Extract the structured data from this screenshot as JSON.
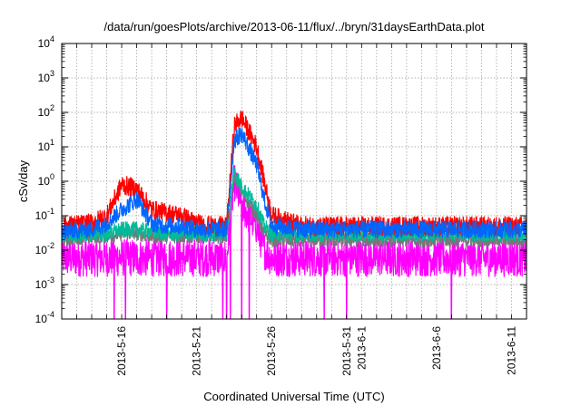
{
  "chart_data": {
    "type": "line",
    "title": "/data/run/goesPlots/archive/2013-06-11/flux/../bryn/31daysEarthData.plot",
    "xlabel": "Coordinated Universal Time (UTC)",
    "ylabel": "cSv/day",
    "y_scale": "log",
    "ylim": [
      0.0001,
      10000
    ],
    "xlim": [
      "2013-05-12",
      "2013-06-12"
    ],
    "grid": true,
    "x_ticks": [
      "2013-5-16",
      "2013-5-21",
      "2013-5-26",
      "2013-5-31",
      "2013-6-1",
      "2013-6-6",
      "2013-6-11"
    ],
    "y_ticks": [
      {
        "base": "10",
        "exp": "-4"
      },
      {
        "base": "10",
        "exp": "-3"
      },
      {
        "base": "10",
        "exp": "-2"
      },
      {
        "base": "10",
        "exp": "-1"
      },
      {
        "base": "10",
        "exp": "0"
      },
      {
        "base": "10",
        "exp": "1"
      },
      {
        "base": "10",
        "exp": "2"
      },
      {
        "base": "10",
        "exp": "3"
      },
      {
        "base": "10",
        "exp": "4"
      }
    ],
    "x": [
      "2013-05-12",
      "2013-05-14",
      "2013-05-15",
      "2013-05-16",
      "2013-05-17",
      "2013-05-18",
      "2013-05-19",
      "2013-05-20",
      "2013-05-21",
      "2013-05-22",
      "2013-05-23",
      "2013-05-23T12:00",
      "2013-05-24",
      "2013-05-25",
      "2013-05-25T12:00",
      "2013-05-26",
      "2013-05-28",
      "2013-06-01",
      "2013-06-06",
      "2013-06-12"
    ],
    "series": [
      {
        "color": "#ff0000",
        "values": [
          0.05,
          0.06,
          0.1,
          0.8,
          0.6,
          0.15,
          0.12,
          0.1,
          0.06,
          0.05,
          0.05,
          40,
          70,
          10,
          1.0,
          0.1,
          0.05,
          0.05,
          0.05,
          0.05
        ]
      },
      {
        "color": "#0066ff",
        "values": [
          0.035,
          0.04,
          0.06,
          0.15,
          0.3,
          0.06,
          0.05,
          0.05,
          0.04,
          0.04,
          0.04,
          15,
          25,
          3,
          0.3,
          0.05,
          0.04,
          0.04,
          0.04,
          0.04
        ]
      },
      {
        "color": "#00bb99",
        "values": [
          0.025,
          0.03,
          0.03,
          0.04,
          0.04,
          0.035,
          0.03,
          0.03,
          0.03,
          0.03,
          0.03,
          2,
          0.7,
          0.2,
          0.05,
          0.03,
          0.03,
          0.03,
          0.03,
          0.03
        ]
      },
      {
        "color": "#777777",
        "values": [
          0.02,
          0.025,
          0.025,
          0.03,
          0.03,
          0.025,
          0.025,
          0.025,
          0.025,
          0.025,
          0.025,
          1.5,
          0.5,
          0.1,
          0.03,
          0.02,
          0.02,
          0.02,
          0.02,
          0.02
        ]
      },
      {
        "color": "#ff00ff",
        "values": [
          0.006,
          0.006,
          0.006,
          0.006,
          0.006,
          0.006,
          0.006,
          0.006,
          0.006,
          0.006,
          0.006,
          1.0,
          0.2,
          0.05,
          0.01,
          0.006,
          0.006,
          0.006,
          0.006,
          0.006
        ]
      }
    ],
    "magenta_dropouts": [
      "2013-05-15T12:00",
      "2013-05-16T06:00",
      "2013-05-19",
      "2013-05-22T18:00",
      "2013-05-23",
      "2013-05-23T06:00",
      "2013-05-24",
      "2013-05-24T12:00",
      "2013-05-29T12:00",
      "2013-05-31",
      "2013-06-07"
    ]
  }
}
